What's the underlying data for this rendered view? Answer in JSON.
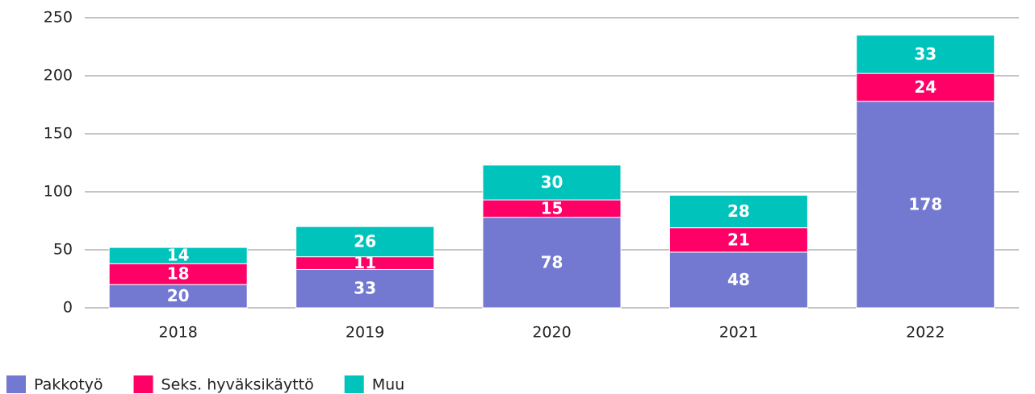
{
  "chart_data": {
    "type": "stacked_bar",
    "categories": [
      "2018",
      "2019",
      "2020",
      "2021",
      "2022"
    ],
    "series": [
      {
        "name": "Pakkotyö",
        "color": "#7379d1",
        "values": [
          20,
          33,
          78,
          48,
          178
        ]
      },
      {
        "name": "Seks. hyväksikäyttö",
        "color": "#ff0066",
        "values": [
          18,
          11,
          15,
          21,
          24
        ]
      },
      {
        "name": "Muu",
        "color": "#00c4bc",
        "values": [
          14,
          26,
          30,
          28,
          33
        ]
      }
    ],
    "ylim": [
      0,
      250
    ],
    "yticks": [
      0,
      50,
      100,
      150,
      200,
      250
    ],
    "grid": true,
    "legend": "bottom-left"
  }
}
